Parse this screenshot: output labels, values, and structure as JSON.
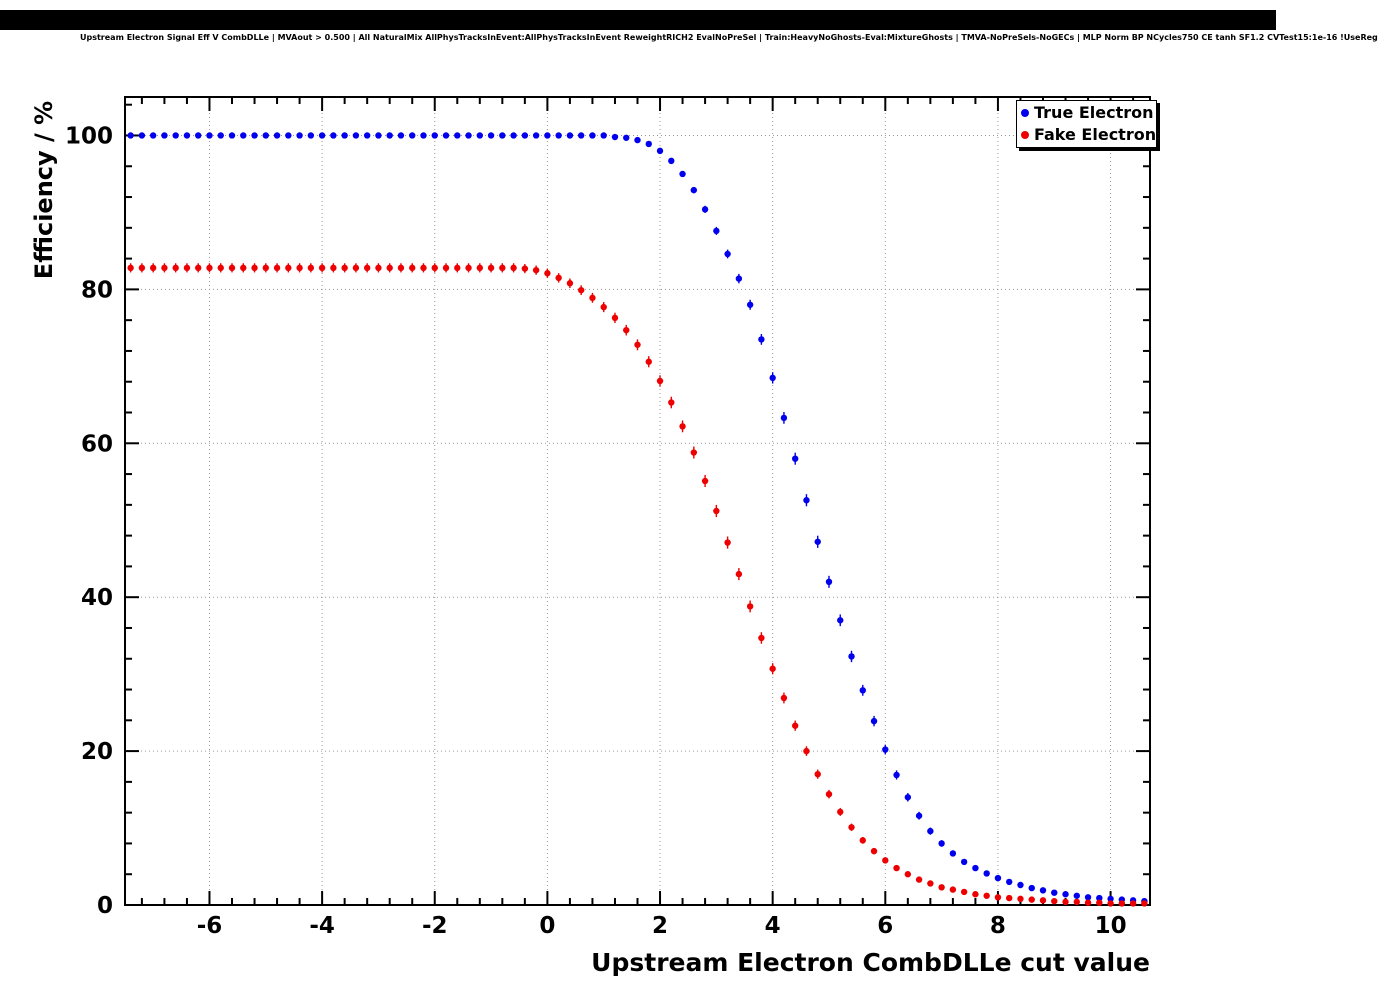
{
  "header": {
    "title": "Upstream Electron Signal Eff V CombDLLe | MVAout > 0.500 | All NaturalMix AllPhysTracksInEvent:AllPhysTracksInEvent ReweightRICH2 EvalNoPreSel | Train:HeavyNoGhosts-Eval:MixtureGhosts | TMVA-NoPreSels-NoGECs | MLP Norm BP NCycles750 CE tanh SF1.2 CVTest15:1e-16 !UseReg"
  },
  "chart_data": {
    "type": "scatter",
    "title": "Upstream Electron Signal Eff V CombDLLe | MVAout > 0.500 | All NaturalMix AllPhysTracksInEvent:AllPhysTracksInEvent ReweightRICH2 EvalNoPreSel | Train:HeavyNoGhosts-Eval:MixtureGhosts | TMVA-NoPreSels-NoGECs | MLP Norm BP NCycles750 CE tanh SF1.2 CVTest15:1e-16 !UseReg",
    "xlabel": "Upstream Electron CombDLLe cut value",
    "ylabel": "Efficiency / %",
    "xlim": [
      -7.5,
      10.7
    ],
    "ylim": [
      0,
      105
    ],
    "x_ticks": [
      -6,
      -4,
      -2,
      0,
      2,
      4,
      6,
      8,
      10
    ],
    "y_ticks": [
      0,
      20,
      40,
      60,
      80,
      100
    ],
    "x_minor_step": 0.4,
    "y_minor_step": 4,
    "grid": "dotted",
    "legend_position": "top-right",
    "marker": "filled-circle",
    "x_start": -7.4,
    "x_step": 0.2,
    "n_points": 91,
    "series": [
      {
        "name": "True Electron",
        "color": "#0000ee",
        "y_values": [
          100,
          100,
          100,
          100,
          100,
          100,
          100,
          100,
          100,
          100,
          100,
          100,
          100,
          100,
          100,
          100,
          100,
          100,
          100,
          100,
          100,
          100,
          100,
          100,
          100,
          100,
          100,
          100,
          100,
          100,
          100,
          100,
          100,
          100,
          100,
          100,
          100,
          100,
          100,
          100,
          100,
          100,
          100,
          99.8,
          99.7,
          99.4,
          98.9,
          98.0,
          96.7,
          95.0,
          92.9,
          90.4,
          87.6,
          84.6,
          81.4,
          78.0,
          73.5,
          68.5,
          63.3,
          58.0,
          52.6,
          47.2,
          42.0,
          37.0,
          32.3,
          27.9,
          23.9,
          20.2,
          16.9,
          14.0,
          11.6,
          9.6,
          8.0,
          6.7,
          5.6,
          4.8,
          4.1,
          3.5,
          3.0,
          2.6,
          2.2,
          1.9,
          1.6,
          1.4,
          1.2,
          1.0,
          0.9,
          0.8,
          0.7,
          0.6,
          0.5
        ]
      },
      {
        "name": "Fake Electron",
        "color": "#ee0000",
        "y_values": [
          82.8,
          82.8,
          82.8,
          82.8,
          82.8,
          82.8,
          82.8,
          82.8,
          82.8,
          82.8,
          82.8,
          82.8,
          82.8,
          82.8,
          82.8,
          82.8,
          82.8,
          82.8,
          82.8,
          82.8,
          82.8,
          82.8,
          82.8,
          82.8,
          82.8,
          82.8,
          82.8,
          82.8,
          82.8,
          82.8,
          82.8,
          82.8,
          82.8,
          82.8,
          82.8,
          82.7,
          82.5,
          82.1,
          81.5,
          80.8,
          79.9,
          78.9,
          77.7,
          76.3,
          74.7,
          72.8,
          70.6,
          68.1,
          65.3,
          62.2,
          58.8,
          55.1,
          51.2,
          47.1,
          43.0,
          38.8,
          34.7,
          30.7,
          26.9,
          23.3,
          20.0,
          17.0,
          14.4,
          12.1,
          10.1,
          8.4,
          7.0,
          5.8,
          4.8,
          4.0,
          3.3,
          2.8,
          2.3,
          2.0,
          1.7,
          1.4,
          1.2,
          1.0,
          0.9,
          0.8,
          0.7,
          0.6,
          0.5,
          0.4,
          0.4,
          0.3,
          0.3,
          0.2,
          0.2,
          0.2,
          0.2
        ]
      }
    ]
  }
}
